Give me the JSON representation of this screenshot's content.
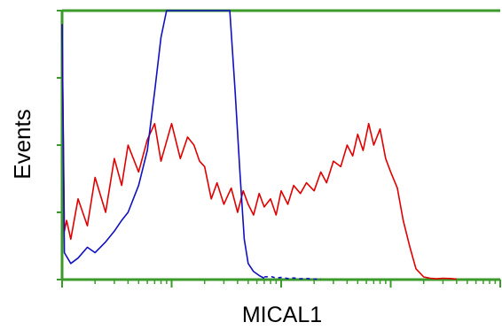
{
  "chart_data": {
    "type": "line",
    "title": "",
    "xlabel": "MICAL1",
    "ylabel": "Events",
    "xscale": "log",
    "xlim": [
      1,
      10000
    ],
    "ylim": [
      0,
      100
    ],
    "grid": false,
    "legend": "none",
    "axis_color": "#3a9a2a",
    "series": [
      {
        "color": "#e00000",
        "style": "solid",
        "x": [
          1,
          1.05,
          1.1,
          1.2,
          1.4,
          1.7,
          2,
          2.5,
          3,
          3.5,
          4,
          5,
          6,
          7,
          8,
          10,
          12,
          14,
          16,
          18,
          20,
          23,
          26,
          30,
          35,
          40,
          45,
          50,
          56,
          63,
          70,
          80,
          90,
          100,
          115,
          130,
          150,
          170,
          200,
          230,
          260,
          300,
          350,
          400,
          450,
          500,
          560,
          630,
          700,
          800,
          900,
          1000,
          1150,
          1300,
          1500,
          1700,
          2000,
          2300,
          2600,
          3000,
          3500,
          4000
        ],
        "y": [
          95,
          18,
          22,
          15,
          30,
          20,
          38,
          25,
          45,
          35,
          50,
          40,
          52,
          58,
          44,
          58,
          45,
          53,
          50,
          44,
          42,
          30,
          36,
          28,
          34,
          25,
          33,
          28,
          24,
          32,
          27,
          30,
          24,
          33,
          28,
          35,
          32,
          36,
          33,
          40,
          36,
          44,
          42,
          50,
          46,
          54,
          48,
          58,
          50,
          56,
          45,
          40,
          34,
          22,
          12,
          4,
          1,
          0.5,
          0.3,
          0.5,
          0.4,
          0.2
        ]
      },
      {
        "color": "#1010c0",
        "style": "solid",
        "x": [
          1,
          1.05,
          1.2,
          1.4,
          1.7,
          2,
          2.5,
          3,
          3.5,
          4,
          5,
          6,
          7,
          8,
          9,
          10,
          12,
          14,
          16,
          18,
          20,
          23,
          26,
          30,
          34,
          38,
          42,
          46,
          50,
          56,
          63,
          70
        ],
        "y": [
          95,
          10,
          6,
          8,
          12,
          10,
          14,
          18,
          22,
          25,
          35,
          48,
          70,
          90,
          100,
          100,
          100,
          100,
          100,
          100,
          100,
          100,
          100,
          100,
          100,
          70,
          40,
          15,
          6,
          3,
          1.5,
          0.5
        ]
      },
      {
        "color": "#1010c0",
        "style": "dashed",
        "x": [
          70,
          80,
          90,
          100,
          115,
          130,
          150,
          170,
          200,
          230
        ],
        "y": [
          1,
          1.2,
          0.6,
          0.8,
          0.4,
          0.6,
          0.3,
          0.4,
          0.2,
          0.3
        ]
      }
    ]
  }
}
